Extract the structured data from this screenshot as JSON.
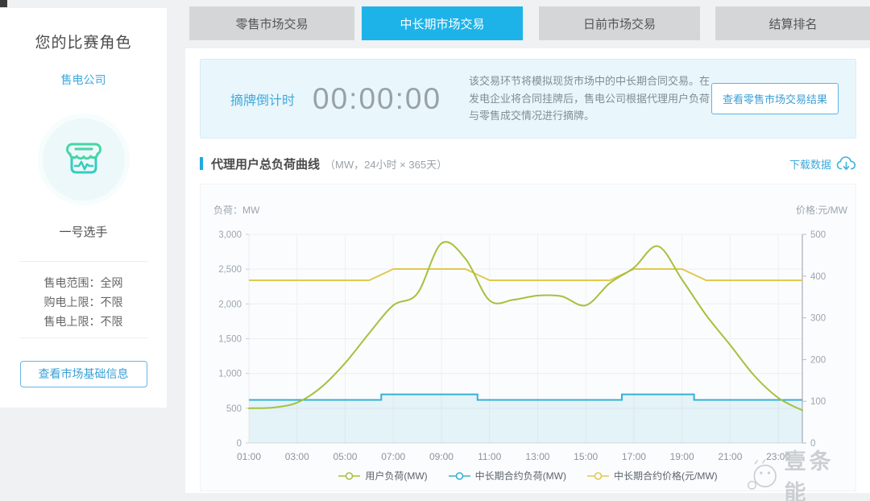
{
  "page": {
    "watermark_text": "壹条能"
  },
  "sidebar": {
    "title": "您的比赛角色",
    "role": "售电公司",
    "player": "一号选手",
    "stats": [
      {
        "label": "售电范围：",
        "value": "全网"
      },
      {
        "label": "购电上限：",
        "value": "不限"
      },
      {
        "label": "售电上限：",
        "value": "不限"
      }
    ],
    "button": "查看市场基础信息"
  },
  "tabs": [
    {
      "label": "零售市场交易",
      "active": false
    },
    {
      "label": "中长期市场交易",
      "active": true
    },
    {
      "label": "日前市场交易",
      "active": false
    },
    {
      "label": "结算排名",
      "active": false
    }
  ],
  "banner": {
    "countdown_label": "摘牌倒计时",
    "countdown_value": "00:00:00",
    "description": "该交易环节将模拟现货市场中的中长期合同交易。在 发电企业将合同挂牌后，售电公司根据代理用户负荷 与零售成交情况进行摘牌。",
    "button": "查看零售市场交易结果"
  },
  "section": {
    "title": "代理用户总负荷曲线",
    "subtitle": "（MW，24小时 × 365天）",
    "download_label": "下载数据"
  },
  "chart_data": {
    "type": "line",
    "title": "代理用户总负荷曲线",
    "x": [
      1,
      2,
      3,
      4,
      5,
      6,
      7,
      8,
      9,
      10,
      11,
      12,
      13,
      14,
      15,
      16,
      17,
      18,
      19,
      20,
      21,
      22,
      23,
      24
    ],
    "x_ticks": {
      "values": [
        1,
        3,
        5,
        7,
        9,
        11,
        13,
        15,
        17,
        19,
        21,
        23
      ],
      "labels": [
        "01:00",
        "03:00",
        "05:00",
        "07:00",
        "09:00",
        "11:00",
        "13:00",
        "15:00",
        "17:00",
        "19:00",
        "21:00",
        "23:00"
      ]
    },
    "y_left": {
      "name": "负荷：MW",
      "min": 0,
      "max": 3000,
      "tick_values": [
        0,
        500,
        1000,
        1500,
        2000,
        2500,
        3000
      ],
      "tick_labels": [
        "0",
        "500",
        "1,000",
        "1,500",
        "2,000",
        "2,500",
        "3,000"
      ]
    },
    "y_right": {
      "name": "价格:元/MW",
      "min": 0,
      "max": 500,
      "tick_values": [
        0,
        100,
        200,
        300,
        400,
        500
      ],
      "tick_labels": [
        "0",
        "100",
        "200",
        "300",
        "400",
        "500"
      ]
    },
    "grid": true,
    "legend_position": "bottom",
    "series": [
      {
        "name": "用户负荷(MW)",
        "axis": "left",
        "style": "smooth",
        "color": "#a5c13f",
        "values": [
          500,
          510,
          580,
          800,
          1150,
          1580,
          1980,
          2150,
          2870,
          2650,
          2050,
          2060,
          2120,
          2110,
          1980,
          2300,
          2520,
          2830,
          2350,
          1840,
          1410,
          970,
          650,
          470
        ]
      },
      {
        "name": "中长期合约负荷(MW)",
        "axis": "left",
        "style": "step",
        "color": "#35b0d5",
        "area": true,
        "values": [
          620,
          620,
          620,
          620,
          620,
          620,
          700,
          700,
          700,
          700,
          620,
          620,
          620,
          620,
          620,
          620,
          700,
          700,
          700,
          620,
          620,
          620,
          620,
          620
        ]
      },
      {
        "name": "中长期合约价格(元/MW)",
        "axis": "right",
        "style": "linear",
        "color": "#e0c94f",
        "values": [
          390,
          390,
          390,
          390,
          390,
          390,
          417,
          417,
          417,
          417,
          390,
          390,
          390,
          390,
          390,
          390,
          417,
          417,
          417,
          390,
          390,
          390,
          390,
          390
        ]
      }
    ]
  }
}
